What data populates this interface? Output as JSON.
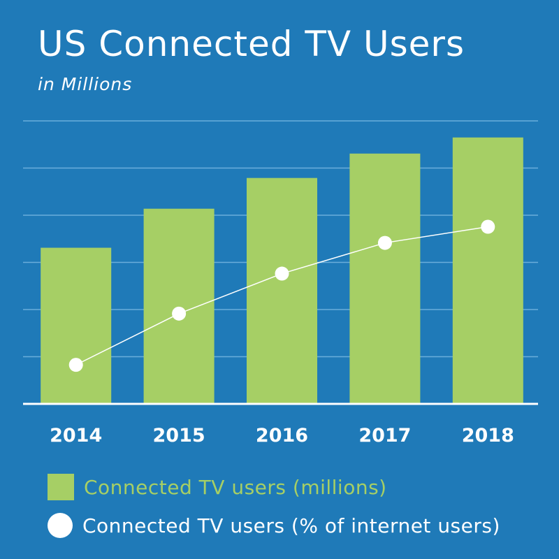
{
  "chart_data": {
    "type": "bar",
    "title": "US Connected TV Users",
    "subtitle": "in Millions",
    "categories": [
      "2014",
      "2015",
      "2016",
      "2017",
      "2018"
    ],
    "series": [
      {
        "name": "Connected TV users (millions)",
        "type": "bar",
        "values": [
          32,
          40,
          46.3,
          51.3,
          54.6
        ]
      },
      {
        "name": "Connected TV users (% of internet users)",
        "type": "line",
        "values": [
          8,
          18.5,
          26.7,
          33,
          36.3
        ]
      }
    ],
    "ylim": [
      0,
      58
    ],
    "grid": true,
    "legend": "bottom",
    "colors": {
      "background": "#1f7ab8",
      "bar": "#a6cf65",
      "line": "#ffffff",
      "grid": "#6aaedb",
      "axis": "#ffffff"
    }
  }
}
